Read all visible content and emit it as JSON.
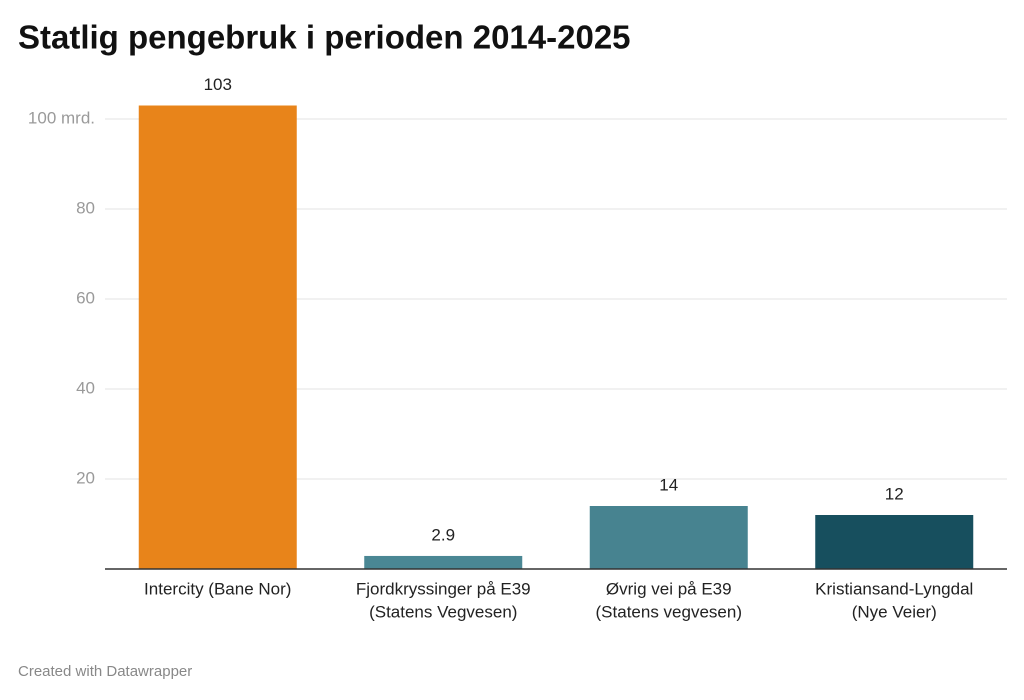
{
  "chart_data": {
    "type": "bar",
    "title": "Statlig pengebruk i perioden 2014-2025",
    "categories": [
      [
        "Intercity (Bane Nor)"
      ],
      [
        "Fjordkryssinger på E39",
        "(Statens Vegvesen)"
      ],
      [
        "Øvrig vei på E39",
        "(Statens vegvesen)"
      ],
      [
        "Kristiansand-Lyngdal",
        "(Nye Veier)"
      ]
    ],
    "values": [
      103,
      2.9,
      14,
      12
    ],
    "colors": [
      "#e8841a",
      "#4a8794",
      "#478390",
      "#174f5e"
    ],
    "ylim": [
      0,
      103
    ],
    "yticks": [
      20,
      40,
      60,
      80,
      {
        "value": 100,
        "label": "100 mrd."
      }
    ],
    "grid": true,
    "footer": "Created with Datawrapper"
  }
}
